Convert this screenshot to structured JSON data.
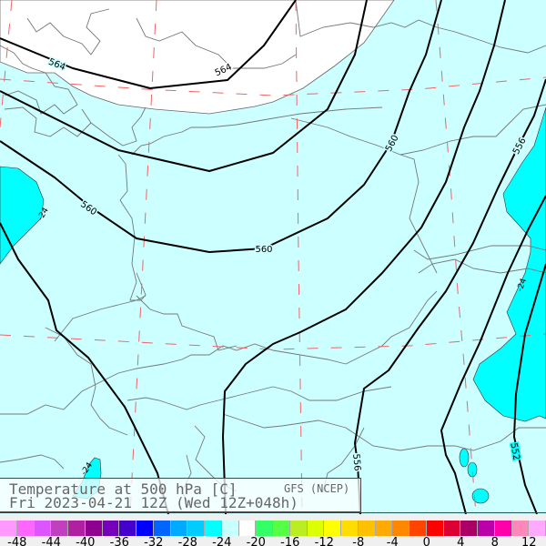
{
  "title": {
    "line1": "Temperature at 500 hPa [C]",
    "model": "GFS (NCEP)",
    "line2": "Fri 2023-04-21 12Z (Wed 12Z+048h)"
  },
  "map": {
    "colors": {
      "background_band": "#ccffff",
      "cold_band": "#00ffff",
      "warm_band": "#ffffff",
      "contour": "#000000",
      "border": "#777777",
      "grid": "#ee6666"
    },
    "contour_labels": [
      "564",
      "564",
      "560",
      "560",
      "560",
      "556",
      "556",
      "552"
    ],
    "temperature_labels": [
      "-24",
      "-24",
      "-24"
    ]
  },
  "colorbar": {
    "colors": [
      "#ff99ff",
      "#ff66ff",
      "#dd55ff",
      "#c040c0",
      "#b020a0",
      "#900090",
      "#7700bb",
      "#4400cc",
      "#0000ff",
      "#0066ff",
      "#00aaff",
      "#00ccff",
      "#00ffff",
      "#c8ffff",
      "#ffffff",
      "#33ff66",
      "#55ff44",
      "#bbee22",
      "#ddff00",
      "#ffff00",
      "#ffdd00",
      "#ffc000",
      "#ffaa00",
      "#ff8800",
      "#ff4400",
      "#ff0000",
      "#dd0033",
      "#aa0066",
      "#bb00aa",
      "#ff00aa",
      "#ff88bb",
      "#ffaaff"
    ],
    "labels": [
      "-48",
      "-44",
      "-40",
      "-36",
      "-32",
      "-28",
      "-24",
      "-20",
      "-16",
      "-12",
      "-8",
      "-4",
      "0",
      "4",
      "8",
      "12"
    ]
  }
}
